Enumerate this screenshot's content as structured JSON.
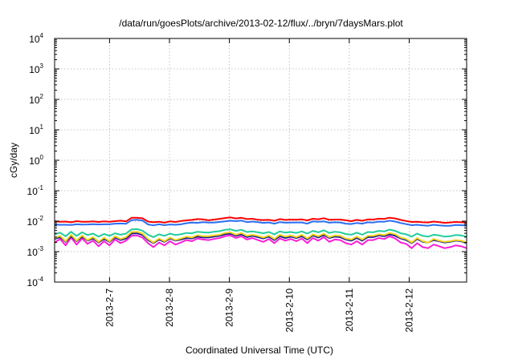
{
  "chart_data": {
    "type": "line",
    "title": "/data/run/goesPlots/archive/2013-02-12/flux/../bryn/7daysMars.plot",
    "xlabel": "Coordinated Universal Time (UTC)",
    "ylabel": "cGy/day",
    "x_range": [
      "2013-02-06 02:00",
      "2013-02-12 23:00"
    ],
    "x_ticks": [
      "2013-2-7",
      "2013-2-8",
      "2013-2-9",
      "2013-2-10",
      "2013-2-11",
      "2013-2-12"
    ],
    "y_scale": "log",
    "ylim": [
      0.0001,
      10000
    ],
    "y_ticks": [
      {
        "base": "10",
        "exp": "-4",
        "value": 0.0001
      },
      {
        "base": "10",
        "exp": "-3",
        "value": 0.001
      },
      {
        "base": "10",
        "exp": "-2",
        "value": 0.01
      },
      {
        "base": "10",
        "exp": "-1",
        "value": 0.1
      },
      {
        "base": "10",
        "exp": "0",
        "value": 1
      },
      {
        "base": "10",
        "exp": "1",
        "value": 10
      },
      {
        "base": "10",
        "exp": "2",
        "value": 100
      },
      {
        "base": "10",
        "exp": "3",
        "value": 1000
      },
      {
        "base": "10",
        "exp": "4",
        "value": 10000
      }
    ],
    "grid": true,
    "series": [
      {
        "color": "#ff0000",
        "values": [
          0.01,
          0.0095,
          0.0097,
          0.0092,
          0.01,
          0.0096,
          0.0095,
          0.0098,
          0.0094,
          0.0099,
          0.0096,
          0.01,
          0.0104,
          0.0098,
          0.0129,
          0.013,
          0.0124,
          0.0097,
          0.0092,
          0.0096,
          0.0089,
          0.0099,
          0.0094,
          0.0101,
          0.0106,
          0.011,
          0.0117,
          0.0114,
          0.0107,
          0.0113,
          0.0119,
          0.0127,
          0.0133,
          0.0123,
          0.0129,
          0.0117,
          0.012,
          0.0111,
          0.0109,
          0.0111,
          0.0103,
          0.0117,
          0.011,
          0.0113,
          0.0112,
          0.0114,
          0.0106,
          0.012,
          0.0116,
          0.0125,
          0.0111,
          0.0113,
          0.0113,
          0.0107,
          0.01,
          0.011,
          0.0103,
          0.0114,
          0.0113,
          0.0121,
          0.0119,
          0.013,
          0.0123,
          0.011,
          0.0101,
          0.0094,
          0.0096,
          0.0092,
          0.0091,
          0.0097,
          0.0093,
          0.0088,
          0.0091,
          0.0094,
          0.0092,
          0.009
        ]
      },
      {
        "color": "#2b6ef2",
        "values": [
          0.0077,
          0.0076,
          0.0076,
          0.0075,
          0.0079,
          0.0077,
          0.0078,
          0.008,
          0.0078,
          0.0079,
          0.0079,
          0.0083,
          0.0084,
          0.0082,
          0.0108,
          0.0111,
          0.0105,
          0.0078,
          0.0073,
          0.0079,
          0.0074,
          0.0078,
          0.0076,
          0.0079,
          0.0086,
          0.009,
          0.0088,
          0.0093,
          0.009,
          0.009,
          0.0094,
          0.0098,
          0.0104,
          0.01,
          0.0105,
          0.0093,
          0.0097,
          0.0093,
          0.0088,
          0.0091,
          0.0083,
          0.0093,
          0.0089,
          0.009,
          0.0091,
          0.0091,
          0.0083,
          0.0098,
          0.0096,
          0.0098,
          0.0089,
          0.0092,
          0.0091,
          0.0083,
          0.0081,
          0.0087,
          0.0083,
          0.0092,
          0.009,
          0.0097,
          0.0096,
          0.0104,
          0.0097,
          0.0087,
          0.008,
          0.0074,
          0.0076,
          0.0073,
          0.0071,
          0.0076,
          0.0073,
          0.0071,
          0.0071,
          0.0075,
          0.0074,
          0.0072
        ]
      },
      {
        "color": "#21cc9d",
        "values": [
          0.0037,
          0.0042,
          0.0032,
          0.0045,
          0.0033,
          0.0043,
          0.0035,
          0.0039,
          0.0031,
          0.0038,
          0.0033,
          0.004,
          0.0036,
          0.0039,
          0.0054,
          0.0055,
          0.0049,
          0.0036,
          0.003,
          0.0037,
          0.0033,
          0.0039,
          0.0035,
          0.0037,
          0.0041,
          0.004,
          0.0045,
          0.0043,
          0.0042,
          0.0045,
          0.0047,
          0.0052,
          0.0054,
          0.0048,
          0.0052,
          0.0044,
          0.0046,
          0.0043,
          0.004,
          0.0044,
          0.0037,
          0.0046,
          0.0042,
          0.0044,
          0.0041,
          0.0046,
          0.0039,
          0.0048,
          0.0043,
          0.005,
          0.0041,
          0.0045,
          0.0043,
          0.0038,
          0.0036,
          0.0042,
          0.0036,
          0.0044,
          0.0043,
          0.0048,
          0.0046,
          0.0053,
          0.0048,
          0.004,
          0.0037,
          0.0031,
          0.0039,
          0.0033,
          0.0031,
          0.0036,
          0.0034,
          0.0031,
          0.0032,
          0.0035,
          0.0034,
          0.0031
        ]
      },
      {
        "color": "#f2d61b",
        "values": [
          0.0028,
          0.0033,
          0.0022,
          0.0036,
          0.0023,
          0.0034,
          0.0024,
          0.003,
          0.0021,
          0.0029,
          0.0022,
          0.0032,
          0.0026,
          0.003,
          0.0044,
          0.0045,
          0.0039,
          0.0026,
          0.002,
          0.0027,
          0.0022,
          0.0029,
          0.0024,
          0.0027,
          0.0031,
          0.0029,
          0.0035,
          0.0032,
          0.0032,
          0.0034,
          0.0036,
          0.0041,
          0.0043,
          0.0036,
          0.0041,
          0.0033,
          0.0036,
          0.0033,
          0.0029,
          0.0034,
          0.0026,
          0.0036,
          0.0031,
          0.0034,
          0.003,
          0.0036,
          0.0027,
          0.0037,
          0.0032,
          0.0039,
          0.003,
          0.0034,
          0.0033,
          0.0027,
          0.0025,
          0.0031,
          0.0025,
          0.0033,
          0.0033,
          0.0037,
          0.0035,
          0.0041,
          0.0037,
          0.0029,
          0.0026,
          0.002,
          0.0028,
          0.0022,
          0.002,
          0.0026,
          0.0023,
          0.0021,
          0.0022,
          0.0024,
          0.0023,
          0.002
        ]
      },
      {
        "color": "#1a1a8c",
        "values": [
          0.0026,
          0.003,
          0.0021,
          0.0032,
          0.0022,
          0.0031,
          0.0023,
          0.0027,
          0.002,
          0.0026,
          0.0021,
          0.0029,
          0.0024,
          0.0027,
          0.0039,
          0.004,
          0.0035,
          0.0024,
          0.0019,
          0.0025,
          0.0021,
          0.0027,
          0.0023,
          0.0025,
          0.0028,
          0.0027,
          0.0031,
          0.0029,
          0.0029,
          0.0031,
          0.0033,
          0.0037,
          0.0039,
          0.0033,
          0.0037,
          0.003,
          0.0033,
          0.003,
          0.0027,
          0.0031,
          0.0024,
          0.0032,
          0.0028,
          0.0031,
          0.0028,
          0.0032,
          0.0025,
          0.0034,
          0.0029,
          0.0035,
          0.0028,
          0.0031,
          0.003,
          0.0025,
          0.0023,
          0.0028,
          0.0023,
          0.003,
          0.003,
          0.0034,
          0.0032,
          0.0037,
          0.0033,
          0.0027,
          0.0024,
          0.0019,
          0.0026,
          0.0021,
          0.002,
          0.0024,
          0.0022,
          0.002,
          0.0021,
          0.0023,
          0.0022,
          0.0019
        ]
      },
      {
        "color": "#ff1cd6",
        "values": [
          0.002,
          0.0026,
          0.0016,
          0.0029,
          0.0017,
          0.0027,
          0.0018,
          0.0023,
          0.0015,
          0.0022,
          0.0016,
          0.0025,
          0.0019,
          0.0023,
          0.0033,
          0.0034,
          0.0029,
          0.0019,
          0.0014,
          0.002,
          0.0016,
          0.0022,
          0.0017,
          0.002,
          0.0024,
          0.0022,
          0.0027,
          0.0025,
          0.0024,
          0.0026,
          0.0028,
          0.0032,
          0.0034,
          0.0028,
          0.0032,
          0.0025,
          0.0028,
          0.0024,
          0.0021,
          0.0026,
          0.0019,
          0.0027,
          0.0023,
          0.0026,
          0.0022,
          0.0027,
          0.0019,
          0.0028,
          0.0023,
          0.003,
          0.0021,
          0.0025,
          0.0024,
          0.0019,
          0.0017,
          0.0022,
          0.0017,
          0.0024,
          0.0024,
          0.0028,
          0.0026,
          0.0032,
          0.0027,
          0.002,
          0.0018,
          0.0013,
          0.0019,
          0.0014,
          0.0013,
          0.0017,
          0.0015,
          0.0013,
          0.0014,
          0.0016,
          0.0015,
          0.0013
        ]
      }
    ]
  }
}
